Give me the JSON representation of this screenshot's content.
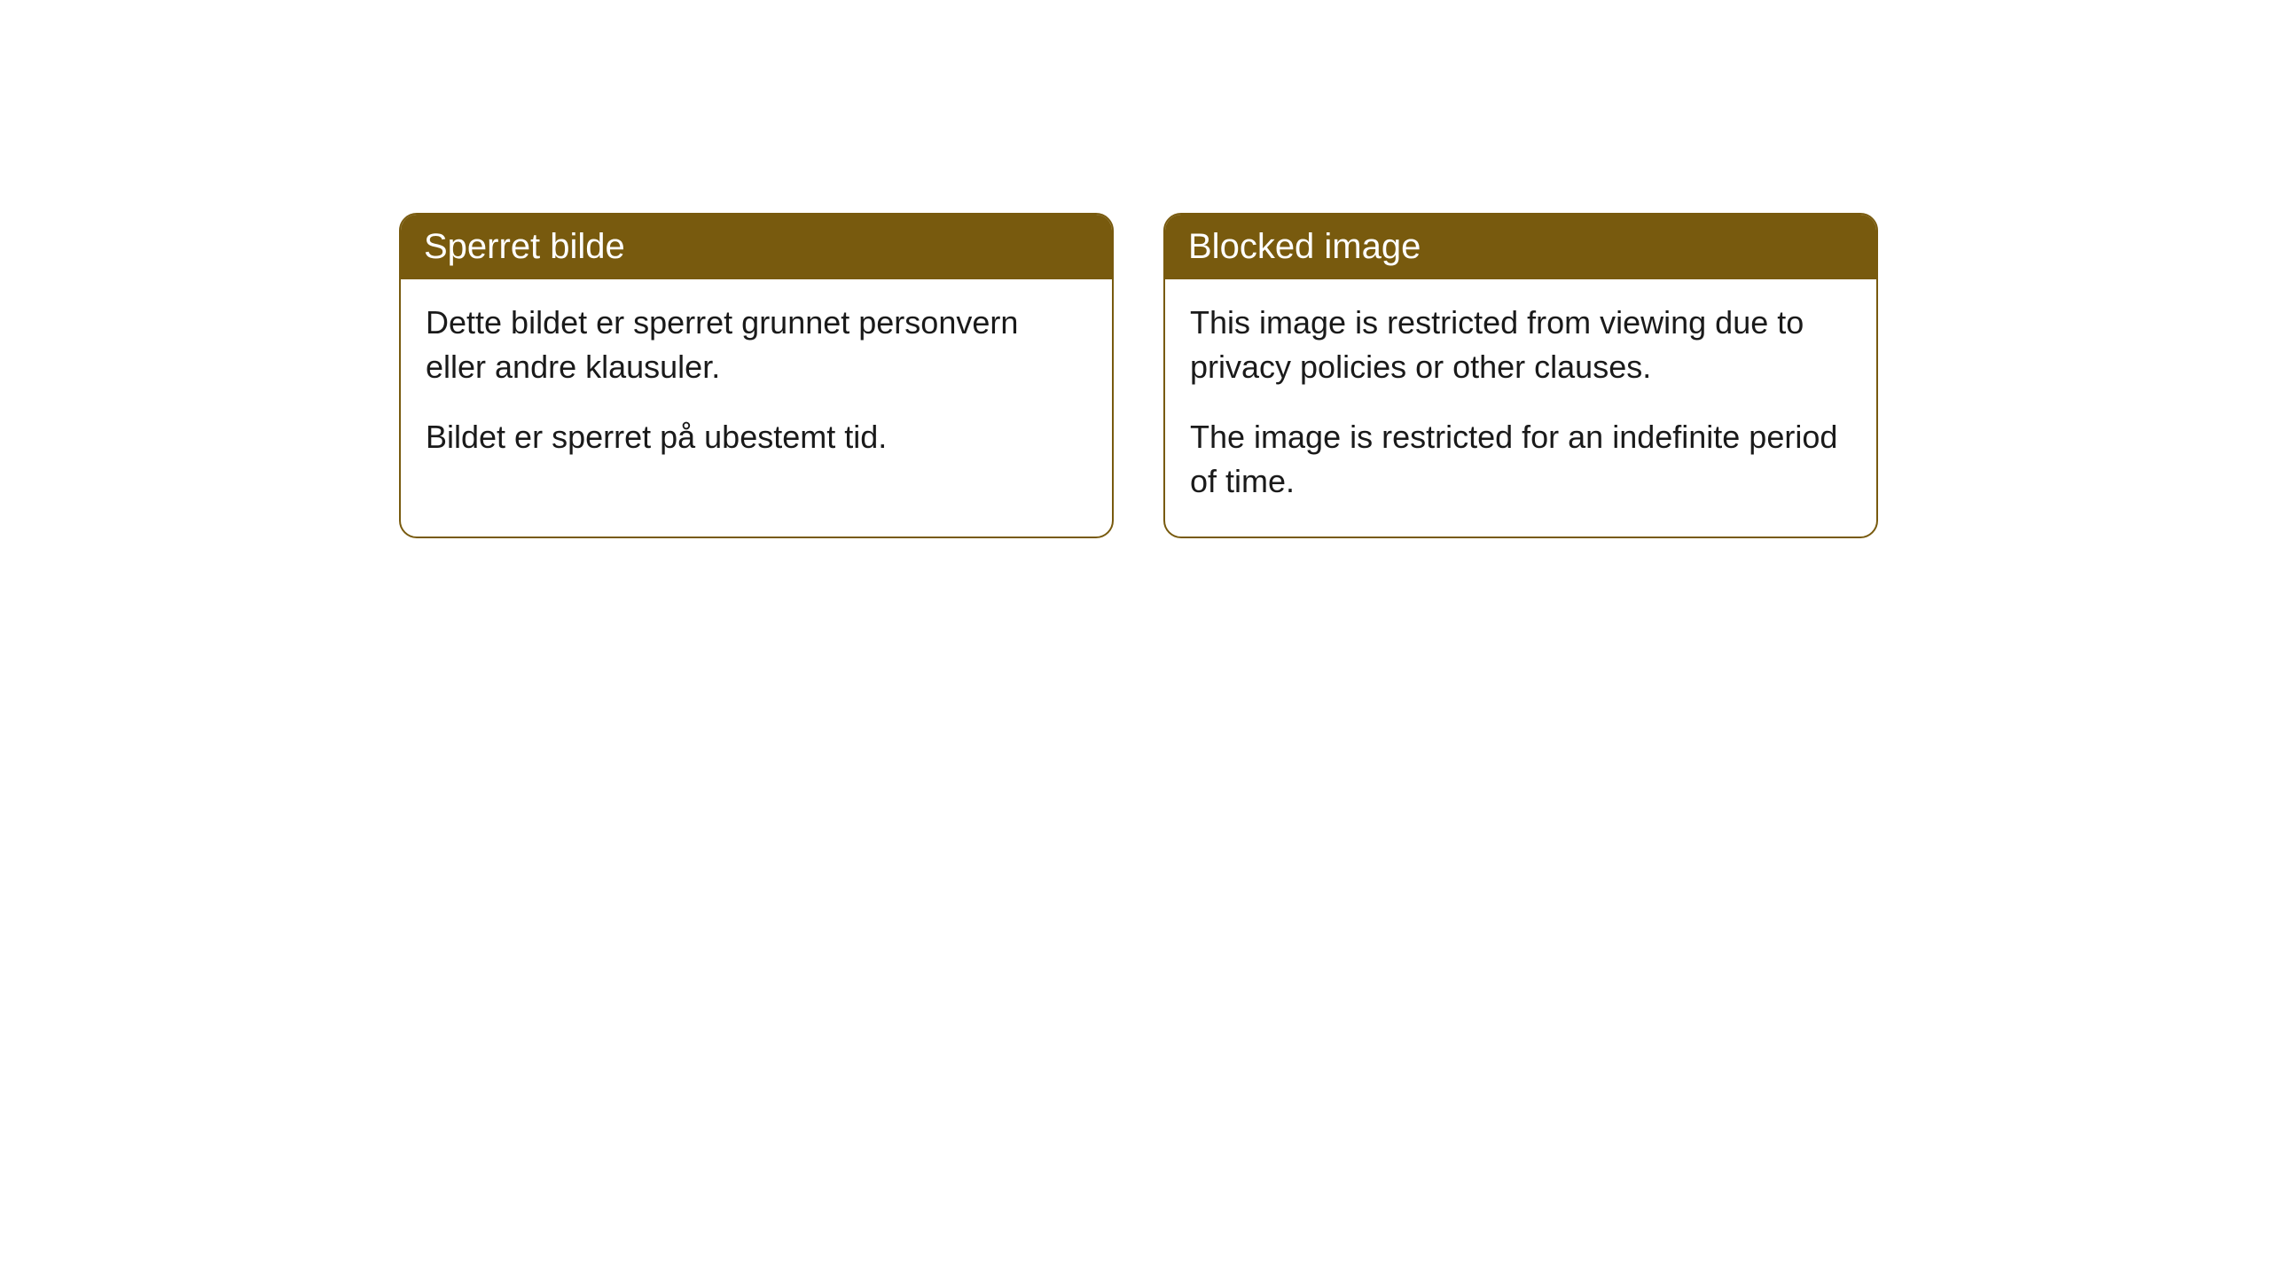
{
  "cards": [
    {
      "title": "Sperret bilde",
      "paragraph1": "Dette bildet er sperret grunnet personvern eller andre klausuler.",
      "paragraph2": "Bildet er sperret på ubestemt tid."
    },
    {
      "title": "Blocked image",
      "paragraph1": "This image is restricted from viewing due to privacy policies or other clauses.",
      "paragraph2": "The image is restricted for an indefinite period of time."
    }
  ],
  "styling": {
    "header_background": "#785a0e",
    "header_text_color": "#ffffff",
    "border_color": "#785a0e",
    "body_background": "#ffffff",
    "body_text_color": "#1a1a1a",
    "border_radius": 20,
    "header_fontsize": 40,
    "body_fontsize": 36
  }
}
